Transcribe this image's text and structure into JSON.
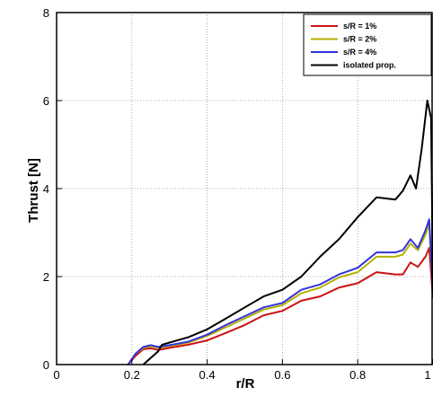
{
  "chart_data": {
    "type": "line",
    "xlabel": "r/R",
    "ylabel": "Thrust [N]",
    "xlim": [
      0,
      1
    ],
    "ylim": [
      0,
      8
    ],
    "xticks": [
      "0",
      "0.2",
      "0.4",
      "0.6",
      "0.8",
      "1"
    ],
    "yticks": [
      "0",
      "2",
      "4",
      "6",
      "8"
    ],
    "grid": "dotted",
    "legend_position": "top-right",
    "series": [
      {
        "name": "s/R = 1%",
        "color": "#cc1111",
        "x": [
          0.19,
          0.21,
          0.23,
          0.25,
          0.27,
          0.3,
          0.35,
          0.4,
          0.45,
          0.5,
          0.55,
          0.6,
          0.65,
          0.7,
          0.75,
          0.8,
          0.85,
          0.9,
          0.92,
          0.94,
          0.96,
          0.98,
          0.99,
          1.0
        ],
        "y": [
          0.0,
          0.2,
          0.35,
          0.37,
          0.33,
          0.38,
          0.45,
          0.55,
          0.72,
          0.9,
          1.12,
          1.22,
          1.45,
          1.55,
          1.75,
          1.85,
          2.1,
          2.05,
          2.05,
          2.32,
          2.22,
          2.45,
          2.65,
          1.5
        ]
      },
      {
        "name": "s/R = 2%",
        "color": "#b5b000",
        "x": [
          0.19,
          0.21,
          0.23,
          0.25,
          0.27,
          0.3,
          0.35,
          0.4,
          0.45,
          0.5,
          0.55,
          0.6,
          0.65,
          0.7,
          0.75,
          0.8,
          0.85,
          0.9,
          0.92,
          0.94,
          0.96,
          0.98,
          0.99,
          1.0
        ],
        "y": [
          0.0,
          0.25,
          0.38,
          0.42,
          0.38,
          0.42,
          0.5,
          0.65,
          0.85,
          1.05,
          1.25,
          1.35,
          1.62,
          1.75,
          1.98,
          2.1,
          2.45,
          2.45,
          2.5,
          2.75,
          2.6,
          2.95,
          3.2,
          1.6
        ]
      },
      {
        "name": "s/R = 4%",
        "color": "#3333dd",
        "x": [
          0.19,
          0.21,
          0.23,
          0.25,
          0.27,
          0.3,
          0.35,
          0.4,
          0.45,
          0.5,
          0.55,
          0.6,
          0.65,
          0.7,
          0.75,
          0.8,
          0.85,
          0.9,
          0.92,
          0.94,
          0.96,
          0.98,
          0.99,
          1.0
        ],
        "y": [
          0.0,
          0.25,
          0.4,
          0.44,
          0.4,
          0.44,
          0.52,
          0.68,
          0.9,
          1.1,
          1.3,
          1.4,
          1.7,
          1.82,
          2.05,
          2.2,
          2.55,
          2.55,
          2.6,
          2.85,
          2.65,
          3.05,
          3.3,
          1.6
        ]
      },
      {
        "name": "isolated prop.",
        "color": "#000000",
        "x": [
          0.23,
          0.25,
          0.27,
          0.28,
          0.3,
          0.35,
          0.4,
          0.45,
          0.5,
          0.55,
          0.6,
          0.65,
          0.7,
          0.75,
          0.8,
          0.85,
          0.9,
          0.92,
          0.94,
          0.955,
          0.97,
          0.985,
          0.995,
          1.0
        ],
        "y": [
          0.0,
          0.15,
          0.3,
          0.45,
          0.5,
          0.62,
          0.8,
          1.05,
          1.3,
          1.55,
          1.7,
          2.0,
          2.45,
          2.85,
          3.35,
          3.8,
          3.75,
          3.95,
          4.3,
          4.0,
          4.9,
          6.0,
          5.6,
          1.6
        ]
      }
    ]
  }
}
